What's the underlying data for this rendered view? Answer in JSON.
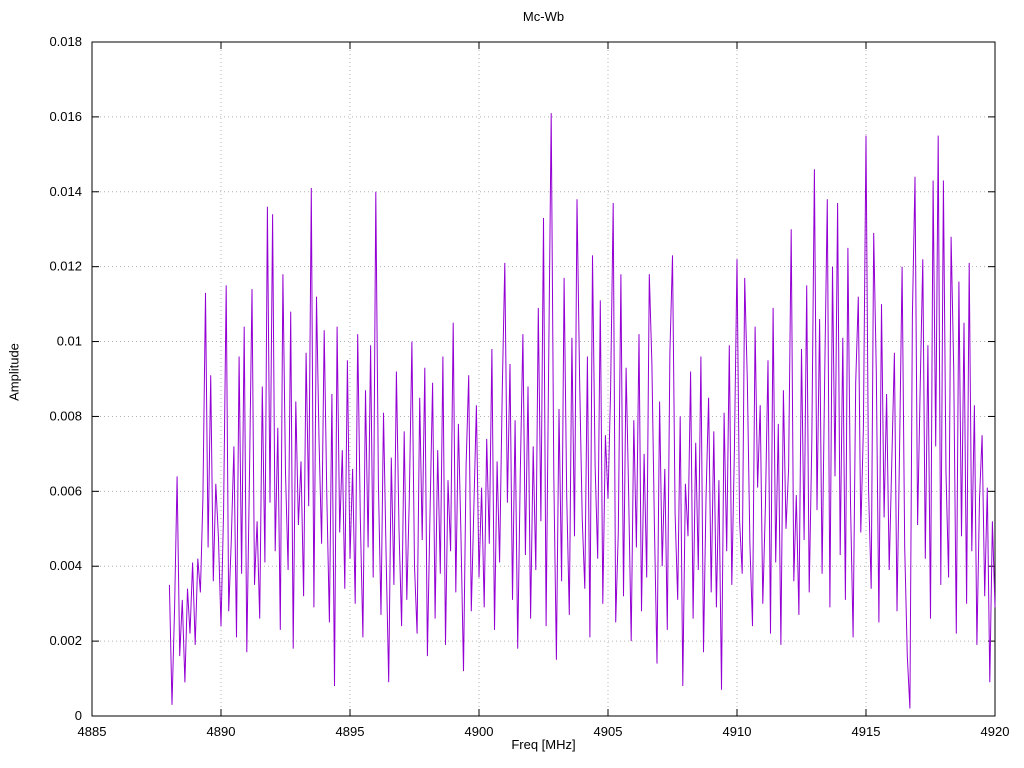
{
  "title": "Mc-Wb",
  "chart_data": {
    "type": "line",
    "title": "Mc-Wb",
    "xlabel": "Freq [MHz]",
    "ylabel": "Amplitude",
    "xlim": [
      4885,
      4920
    ],
    "ylim": [
      0,
      0.018
    ],
    "x_ticks": [
      4885,
      4890,
      4895,
      4900,
      4905,
      4910,
      4915,
      4920
    ],
    "x_tick_labels": [
      "4885",
      "4890",
      "4895",
      "4900",
      "4905",
      "4910",
      "4915",
      "4920"
    ],
    "y_ticks": [
      0,
      0.002,
      0.004,
      0.006,
      0.008,
      0.01,
      0.012,
      0.014,
      0.016,
      0.018
    ],
    "y_tick_labels": [
      "0",
      "0.002",
      "0.004",
      "0.006",
      "0.008",
      "0.01",
      "0.012",
      "0.014",
      "0.016",
      "0.018"
    ],
    "grid": true,
    "legend": "none",
    "line_color": "#9400D3",
    "grid_color": "#b3b3b3",
    "series_name": "Mc-Wb",
    "x_start": 4888.0,
    "x_step": 0.1,
    "values": [
      0.0035,
      0.0003,
      0.0029,
      0.0064,
      0.0016,
      0.0031,
      0.0009,
      0.0034,
      0.0022,
      0.0041,
      0.0019,
      0.0042,
      0.0033,
      0.0058,
      0.0113,
      0.0045,
      0.0091,
      0.0036,
      0.0062,
      0.0048,
      0.0024,
      0.0055,
      0.0115,
      0.0028,
      0.0047,
      0.0072,
      0.0021,
      0.0096,
      0.0038,
      0.0104,
      0.0017,
      0.0063,
      0.0114,
      0.0035,
      0.0052,
      0.0026,
      0.0088,
      0.0041,
      0.0136,
      0.0057,
      0.0134,
      0.0044,
      0.0077,
      0.0023,
      0.0118,
      0.0065,
      0.0039,
      0.0108,
      0.0018,
      0.0084,
      0.0051,
      0.0068,
      0.0032,
      0.0097,
      0.0056,
      0.0141,
      0.0029,
      0.0112,
      0.0074,
      0.0046,
      0.0103,
      0.0059,
      0.0025,
      0.0086,
      0.0008,
      0.0104,
      0.0049,
      0.0071,
      0.0034,
      0.0095,
      0.0042,
      0.0066,
      0.003,
      0.0102,
      0.0053,
      0.0021,
      0.0087,
      0.0045,
      0.0099,
      0.0037,
      0.014,
      0.0062,
      0.0027,
      0.0081,
      0.0043,
      0.0009,
      0.0069,
      0.0035,
      0.0092,
      0.005,
      0.0024,
      0.0076,
      0.0031,
      0.0058,
      0.01,
      0.004,
      0.0022,
      0.0085,
      0.0047,
      0.0093,
      0.0016,
      0.0054,
      0.0089,
      0.0026,
      0.0071,
      0.0038,
      0.0096,
      0.0019,
      0.0063,
      0.0044,
      0.0105,
      0.0033,
      0.0078,
      0.0049,
      0.0012,
      0.0067,
      0.0091,
      0.0028,
      0.0055,
      0.0083,
      0.0037,
      0.0061,
      0.0029,
      0.0074,
      0.0046,
      0.0098,
      0.0023,
      0.0068,
      0.0041,
      0.0086,
      0.0121,
      0.0057,
      0.0094,
      0.0031,
      0.0079,
      0.0018,
      0.0065,
      0.0102,
      0.0043,
      0.0088,
      0.0026,
      0.0072,
      0.0039,
      0.0109,
      0.0052,
      0.0133,
      0.0024,
      0.0095,
      0.0161,
      0.0064,
      0.0015,
      0.0082,
      0.0036,
      0.0117,
      0.0059,
      0.0027,
      0.0101,
      0.0048,
      0.0138,
      0.009,
      0.0053,
      0.0034,
      0.0096,
      0.0021,
      0.0123,
      0.0067,
      0.0042,
      0.0111,
      0.003,
      0.0075,
      0.0058,
      0.0087,
      0.0137,
      0.0025,
      0.0049,
      0.0118,
      0.0032,
      0.0093,
      0.006,
      0.002,
      0.0079,
      0.0045,
      0.0102,
      0.0028,
      0.007,
      0.0037,
      0.0118,
      0.0094,
      0.0051,
      0.0014,
      0.0084,
      0.004,
      0.0066,
      0.0023,
      0.0097,
      0.0123,
      0.0054,
      0.0031,
      0.008,
      0.0008,
      0.0062,
      0.0048,
      0.0092,
      0.0026,
      0.0073,
      0.0039,
      0.0096,
      0.0017,
      0.0058,
      0.0085,
      0.0033,
      0.0076,
      0.0029,
      0.0063,
      0.0007,
      0.0081,
      0.0044,
      0.0099,
      0.0035,
      0.0071,
      0.0122,
      0.0052,
      0.0038,
      0.0117,
      0.009,
      0.0046,
      0.0024,
      0.0104,
      0.0061,
      0.0083,
      0.003,
      0.0056,
      0.0095,
      0.0022,
      0.0109,
      0.0041,
      0.0078,
      0.0019,
      0.0087,
      0.005,
      0.0066,
      0.013,
      0.0036,
      0.0059,
      0.0027,
      0.0098,
      0.0047,
      0.0115,
      0.0033,
      0.0073,
      0.0146,
      0.0055,
      0.0106,
      0.0038,
      0.0091,
      0.0138,
      0.0029,
      0.012,
      0.0064,
      0.0137,
      0.0043,
      0.0101,
      0.0031,
      0.0125,
      0.0057,
      0.0021,
      0.0089,
      0.0112,
      0.0049,
      0.0077,
      0.0155,
      0.006,
      0.0034,
      0.0129,
      0.0092,
      0.0025,
      0.011,
      0.0053,
      0.0086,
      0.0039,
      0.0068,
      0.0097,
      0.0028,
      0.007,
      0.012,
      0.0045,
      0.0016,
      0.0002,
      0.0107,
      0.0144,
      0.0051,
      0.0088,
      0.0122,
      0.0042,
      0.0099,
      0.0026,
      0.0143,
      0.0072,
      0.0155,
      0.0035,
      0.0143,
      0.0065,
      0.0037,
      0.0128,
      0.0093,
      0.0022,
      0.0116,
      0.0048,
      0.0105,
      0.003,
      0.0121,
      0.0044,
      0.0083,
      0.0019,
      0.0058,
      0.0075,
      0.0032,
      0.0061,
      0.0009,
      0.0052,
      0.0029
    ]
  }
}
